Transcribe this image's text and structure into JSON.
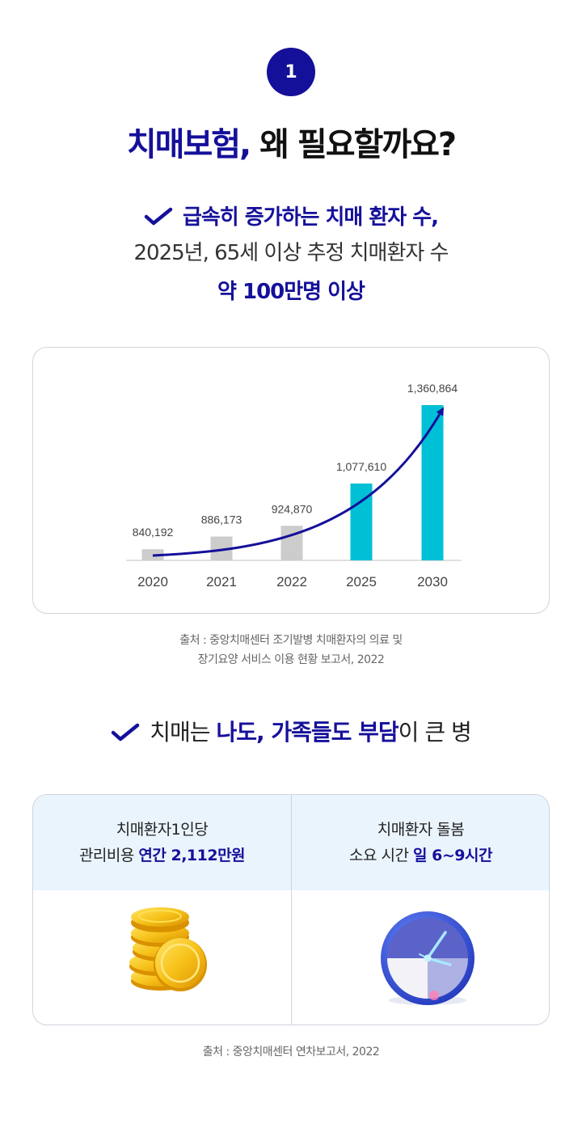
{
  "step_number": "1",
  "title": {
    "accent": "치매보험,",
    "rest": " 왜 필요할까요?"
  },
  "point1": {
    "line1": "급속히 증가하는 치매 환자 수,",
    "line2": "2025년, 65세 이상 추정 치매환자 수",
    "line3": "약 100만명 이상"
  },
  "chart_data": {
    "type": "bar",
    "categories": [
      "2020",
      "2021",
      "2022",
      "2025",
      "2030"
    ],
    "values": [
      840192,
      886173,
      924870,
      1077610,
      1360864
    ],
    "value_labels": [
      "840,192",
      "886,173",
      "924,870",
      "1,077,610",
      "1,360,864"
    ],
    "bar_colors": [
      "#cccccc",
      "#cccccc",
      "#cccccc",
      "#00c0d6",
      "#00c0d6"
    ],
    "trend_color": "#15109a",
    "title": "",
    "xlabel": "",
    "ylabel": "",
    "grid": false,
    "legend": "none"
  },
  "source1": {
    "line1": "출처 : 중앙치매센터 조기발병 치매환자의 의료 및",
    "line2": "장기요양 서비스 이용 현황 보고서, 2022"
  },
  "point2": {
    "pre": "치매는 ",
    "hl1": "나도, 가족들도 부담",
    "post": "이 큰 병"
  },
  "cards": {
    "left": {
      "line1": "치매환자1인당",
      "line2_pre": "관리비용 ",
      "line2_hl": "연간 2,112만원",
      "icon": "gold-coins-icon"
    },
    "right": {
      "line1": "치매환자 돌봄",
      "line2_pre": "소요 시간 ",
      "line2_hl": "일 6~9시간",
      "icon": "clock-icon"
    }
  },
  "source2": "출처 : 중앙치매센터 연차보고서, 2022",
  "colors": {
    "primary": "#15109a",
    "bar_past": "#cccccc",
    "bar_future": "#00c0d6",
    "card_header_bg": "#eaf4fd"
  }
}
